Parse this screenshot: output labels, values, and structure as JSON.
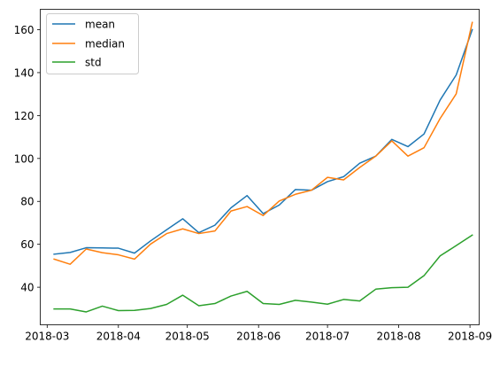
{
  "chart_data": {
    "type": "line",
    "title": "",
    "xlabel": "",
    "ylabel": "",
    "x_ticks": [
      "2018-03",
      "2018-04",
      "2018-05",
      "2018-06",
      "2018-07",
      "2018-08",
      "2018-09"
    ],
    "y_ticks": [
      40,
      60,
      80,
      100,
      120,
      140,
      160
    ],
    "xlim": [
      "2018-02-26",
      "2018-09-05"
    ],
    "ylim": [
      22.5,
      169.5
    ],
    "grid": false,
    "legend_position": "upper-left",
    "x": [
      "2018-03-04",
      "2018-03-11",
      "2018-03-18",
      "2018-03-25",
      "2018-04-01",
      "2018-04-08",
      "2018-04-15",
      "2018-04-22",
      "2018-04-29",
      "2018-05-06",
      "2018-05-13",
      "2018-05-20",
      "2018-05-27",
      "2018-06-03",
      "2018-06-10",
      "2018-06-17",
      "2018-06-24",
      "2018-07-01",
      "2018-07-08",
      "2018-07-15",
      "2018-07-22",
      "2018-07-29",
      "2018-08-05",
      "2018-08-12",
      "2018-08-19",
      "2018-08-26",
      "2018-09-02"
    ],
    "series": [
      {
        "name": "mean",
        "color": "#1f77b4",
        "values": [
          55.4,
          56.2,
          58.4,
          58.3,
          58.2,
          55.9,
          61.6,
          66.8,
          71.9,
          65.4,
          68.9,
          77.0,
          82.7,
          74.3,
          78.3,
          85.5,
          85.2,
          89.2,
          91.5,
          97.8,
          101.1,
          108.9,
          105.5,
          111.4,
          127.2,
          138.9,
          160.0
        ]
      },
      {
        "name": "median",
        "color": "#ff7f0e",
        "values": [
          53.1,
          50.7,
          57.8,
          56.1,
          55.1,
          53.1,
          60.1,
          65.0,
          67.2,
          65.0,
          66.2,
          75.5,
          77.6,
          73.4,
          80.2,
          83.3,
          85.2,
          91.2,
          90.0,
          95.8,
          101.1,
          108.2,
          101.1,
          105.0,
          118.6,
          130.1,
          163.4
        ]
      },
      {
        "name": "std",
        "color": "#2ca02c",
        "values": [
          29.9,
          29.9,
          28.5,
          31.2,
          29.1,
          29.2,
          30.1,
          32.0,
          36.3,
          31.4,
          32.4,
          35.9,
          38.1,
          32.4,
          32.0,
          33.9,
          33.1,
          32.1,
          34.3,
          33.6,
          39.1,
          39.8,
          40.0,
          45.4,
          54.6,
          59.4,
          64.3
        ]
      }
    ]
  }
}
